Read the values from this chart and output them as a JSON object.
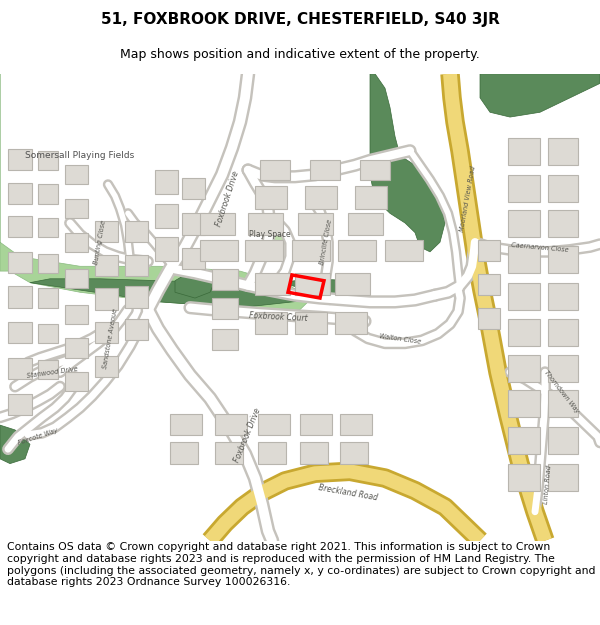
{
  "title_line1": "51, FOXBROOK DRIVE, CHESTERFIELD, S40 3JR",
  "title_line2": "Map shows position and indicative extent of the property.",
  "copyright_text": "Contains OS data © Crown copyright and database right 2021. This information is subject to Crown copyright and database rights 2023 and is reproduced with the permission of HM Land Registry. The polygons (including the associated geometry, namely x, y co-ordinates) are subject to Crown copyright and database rights 2023 Ordnance Survey 100026316.",
  "bg_color": "#f5f3f0",
  "road_color": "#ffffff",
  "road_outline": "#c8c5c0",
  "building_color": "#dddad4",
  "building_outline": "#b8b5ae",
  "green_field": "#8dc48d",
  "green_field2": "#b0d4a0",
  "green_dark": "#5a8a5a",
  "green_play": "#b8dba8",
  "highlight_color": "#ff0000",
  "yellow_fill": "#f0d878",
  "yellow_outline": "#c8a830",
  "text_color": "#555550",
  "title_fontsize": 11,
  "subtitle_fontsize": 9,
  "copyright_fontsize": 7.8
}
